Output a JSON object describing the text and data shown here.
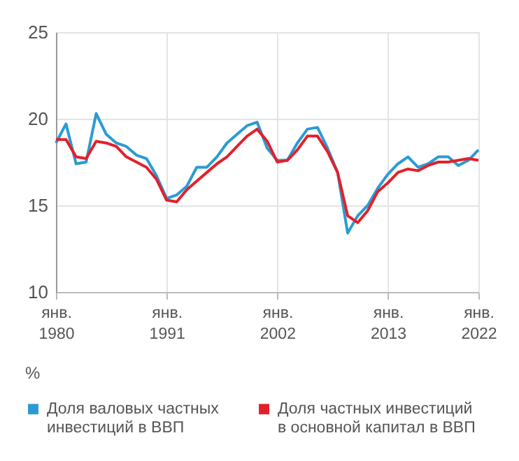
{
  "chart_data": {
    "type": "line",
    "ylabel": "%",
    "x": [
      1980,
      1981,
      1982,
      1983,
      1984,
      1985,
      1986,
      1987,
      1988,
      1989,
      1990,
      1991,
      1992,
      1993,
      1994,
      1995,
      1996,
      1997,
      1998,
      1999,
      2000,
      2001,
      2002,
      2003,
      2004,
      2005,
      2006,
      2007,
      2008,
      2009,
      2010,
      2011,
      2012,
      2013,
      2014,
      2015,
      2016,
      2017,
      2018,
      2019,
      2020,
      2021,
      2022
    ],
    "series": [
      {
        "name": "Доля валовых частных инвестиций в ВВП",
        "color": "#2b9bd3",
        "values": [
          18.6,
          19.7,
          17.4,
          17.5,
          20.3,
          19.1,
          18.6,
          18.4,
          17.9,
          17.7,
          16.7,
          15.4,
          15.6,
          16.1,
          17.2,
          17.2,
          17.8,
          18.6,
          19.1,
          19.6,
          19.8,
          18.3,
          17.6,
          17.6,
          18.6,
          19.4,
          19.5,
          18.3,
          16.9,
          13.4,
          14.4,
          15.0,
          16.0,
          16.8,
          17.4,
          17.8,
          17.2,
          17.4,
          17.8,
          17.8,
          17.3,
          17.6,
          18.2
        ]
      },
      {
        "name": "Доля частных инвестиций в основной капитал в ВВП",
        "color": "#e3202a",
        "values": [
          18.8,
          18.8,
          17.8,
          17.7,
          18.7,
          18.6,
          18.4,
          17.8,
          17.5,
          17.2,
          16.5,
          15.3,
          15.2,
          15.9,
          16.4,
          16.9,
          17.4,
          17.8,
          18.4,
          19.0,
          19.4,
          18.7,
          17.5,
          17.6,
          18.2,
          19.0,
          19.0,
          18.1,
          16.9,
          14.4,
          14.0,
          14.7,
          15.8,
          16.3,
          16.9,
          17.1,
          17.0,
          17.3,
          17.5,
          17.5,
          17.6,
          17.7,
          17.6
        ]
      }
    ],
    "xlim": [
      1980,
      2022
    ],
    "xticks": [
      {
        "value": 1980,
        "label": "янв.\n1980"
      },
      {
        "value": 1991,
        "label": "янв.\n1991"
      },
      {
        "value": 2002,
        "label": "янв.\n2002"
      },
      {
        "value": 2013,
        "label": "янв.\n2013"
      },
      {
        "value": 2022,
        "label": "янв.\n2022"
      }
    ],
    "ylim": [
      10,
      25
    ],
    "yticks": [
      10,
      15,
      20,
      25
    ],
    "grid": true,
    "legend": "bottom",
    "line_style": "solid",
    "marker": "none"
  }
}
